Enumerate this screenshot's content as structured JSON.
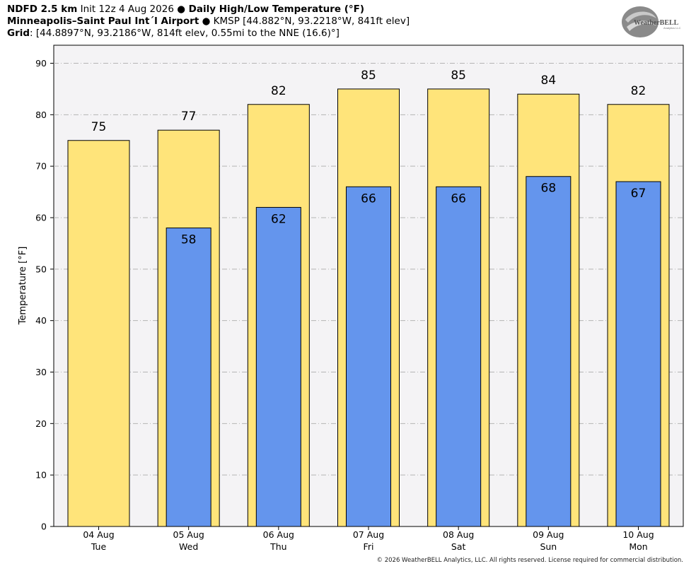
{
  "header": {
    "line1": {
      "model": "NDFD 2.5 km",
      "init": " Init 12z 4 Aug 2026 ",
      "sep": "●",
      "product": " Daily High/Low Temperature (°F)"
    },
    "line2": {
      "station": "Minneapolis–Saint Paul Int´l Airport",
      "sep": " ● ",
      "details": "KMSP [44.882°N, 93.2218°W, 841ft elev]"
    },
    "line3": {
      "label": "Grid",
      "details": ": [44.8897°N, 93.2186°W, 814ft elev, 0.55mi to the NNE (16.6)°]"
    }
  },
  "logo": {
    "line1": "WeatherBELL",
    "line2": "Analytics LLC"
  },
  "copyright": "© 2026 WeatherBELL Analytics, LLC. All rights reserved. License required for commercial distribution.",
  "chart_data": {
    "type": "bar",
    "ylabel": "Temperature [°F]",
    "ylim": [
      0,
      90
    ],
    "yticks": [
      0,
      10,
      20,
      30,
      40,
      50,
      60,
      70,
      80,
      90
    ],
    "grid": true,
    "categories": [
      {
        "date": "04 Aug",
        "day": "Tue"
      },
      {
        "date": "05 Aug",
        "day": "Wed"
      },
      {
        "date": "06 Aug",
        "day": "Thu"
      },
      {
        "date": "07 Aug",
        "day": "Fri"
      },
      {
        "date": "08 Aug",
        "day": "Sat"
      },
      {
        "date": "09 Aug",
        "day": "Sun"
      },
      {
        "date": "10 Aug",
        "day": "Mon"
      }
    ],
    "series": [
      {
        "key": "high",
        "color": "#ffe47a",
        "values": [
          75,
          77,
          82,
          85,
          85,
          84,
          82
        ]
      },
      {
        "key": "low",
        "color": "#6495ed",
        "values": [
          null,
          58,
          62,
          66,
          66,
          68,
          67
        ]
      }
    ]
  }
}
